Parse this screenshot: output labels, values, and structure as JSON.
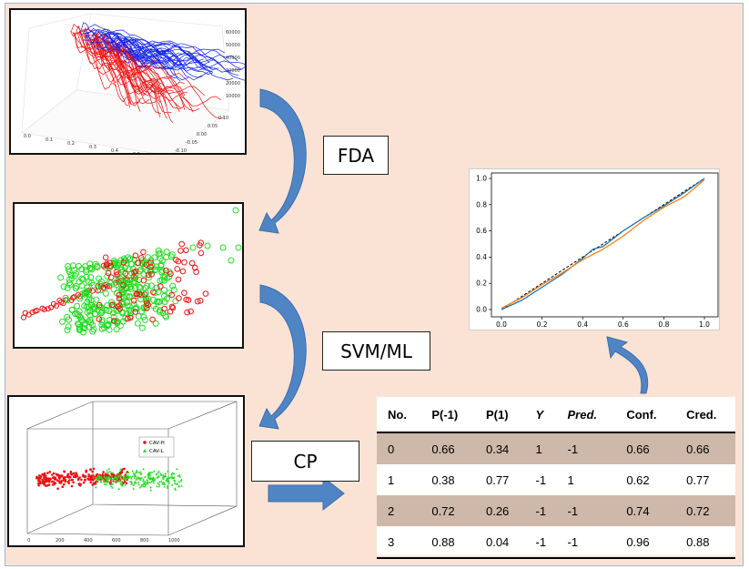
{
  "steps": {
    "fda": "FDA",
    "svm": "SVM/ML",
    "cp": "CP"
  },
  "colors": {
    "background": "#fae3d5",
    "arrow": "#4f85c4",
    "red_series": "#ee1111",
    "blue_series": "#1122ee",
    "green_series": "#22dd22",
    "row_shade": "#cdb8a9",
    "calib_blue": "#1f77b4",
    "calib_orange": "#ff7f0e"
  },
  "panel1": {
    "z_ticks": [
      "60000",
      "50000",
      "40000",
      "30000",
      "20000",
      "10000"
    ],
    "x_ticks": [
      "0.0",
      "0.1",
      "0.2",
      "0.3",
      "0.4",
      "0.5"
    ],
    "y_ticks": [
      "0.10",
      "0.05",
      "0.00",
      "-0.05",
      "-0.10"
    ]
  },
  "panel3": {
    "legend": [
      "CAV-H",
      "CAV-L"
    ],
    "x_ticks": [
      "0",
      "200",
      "400",
      "600",
      "800",
      "1000"
    ]
  },
  "table": {
    "headers": [
      "No.",
      "P(-1)",
      "P(1)",
      "Y",
      "Pred.",
      "Conf.",
      "Cred."
    ],
    "rows": [
      [
        "0",
        "0.66",
        "0.34",
        "1",
        "-1",
        "0.66",
        "0.66"
      ],
      [
        "1",
        "0.38",
        "0.77",
        "-1",
        "1",
        "0.62",
        "0.77"
      ],
      [
        "2",
        "0.72",
        "0.26",
        "-1",
        "-1",
        "0.74",
        "0.72"
      ],
      [
        "3",
        "0.88",
        "0.04",
        "-1",
        "-1",
        "0.96",
        "0.88"
      ]
    ]
  },
  "chart_data": {
    "type": "line",
    "x_ticks": [
      "0.0",
      "0.2",
      "0.4",
      "0.6",
      "0.8",
      "1.0"
    ],
    "y_ticks": [
      "0.0",
      "0.2",
      "0.4",
      "0.6",
      "0.8",
      "1.0"
    ],
    "xlim": [
      0,
      1
    ],
    "ylim": [
      0,
      1
    ],
    "grid": false,
    "series": [
      {
        "style": "dashed",
        "color": "#000000",
        "x": [
          0,
          1
        ],
        "y": [
          0,
          1
        ]
      },
      {
        "color": "#1f77b4",
        "x": [
          0,
          0.1,
          0.2,
          0.3,
          0.4,
          0.45,
          0.5,
          0.55,
          0.6,
          0.7,
          0.8,
          0.9,
          1.0
        ],
        "y": [
          0,
          0.07,
          0.17,
          0.27,
          0.39,
          0.46,
          0.48,
          0.54,
          0.6,
          0.7,
          0.79,
          0.89,
          1.0
        ]
      },
      {
        "color": "#ff7f0e",
        "x": [
          0,
          0.1,
          0.2,
          0.3,
          0.4,
          0.5,
          0.6,
          0.7,
          0.8,
          0.9,
          1.0
        ],
        "y": [
          0.01,
          0.09,
          0.19,
          0.28,
          0.38,
          0.46,
          0.56,
          0.68,
          0.78,
          0.86,
          0.99
        ]
      }
    ]
  }
}
